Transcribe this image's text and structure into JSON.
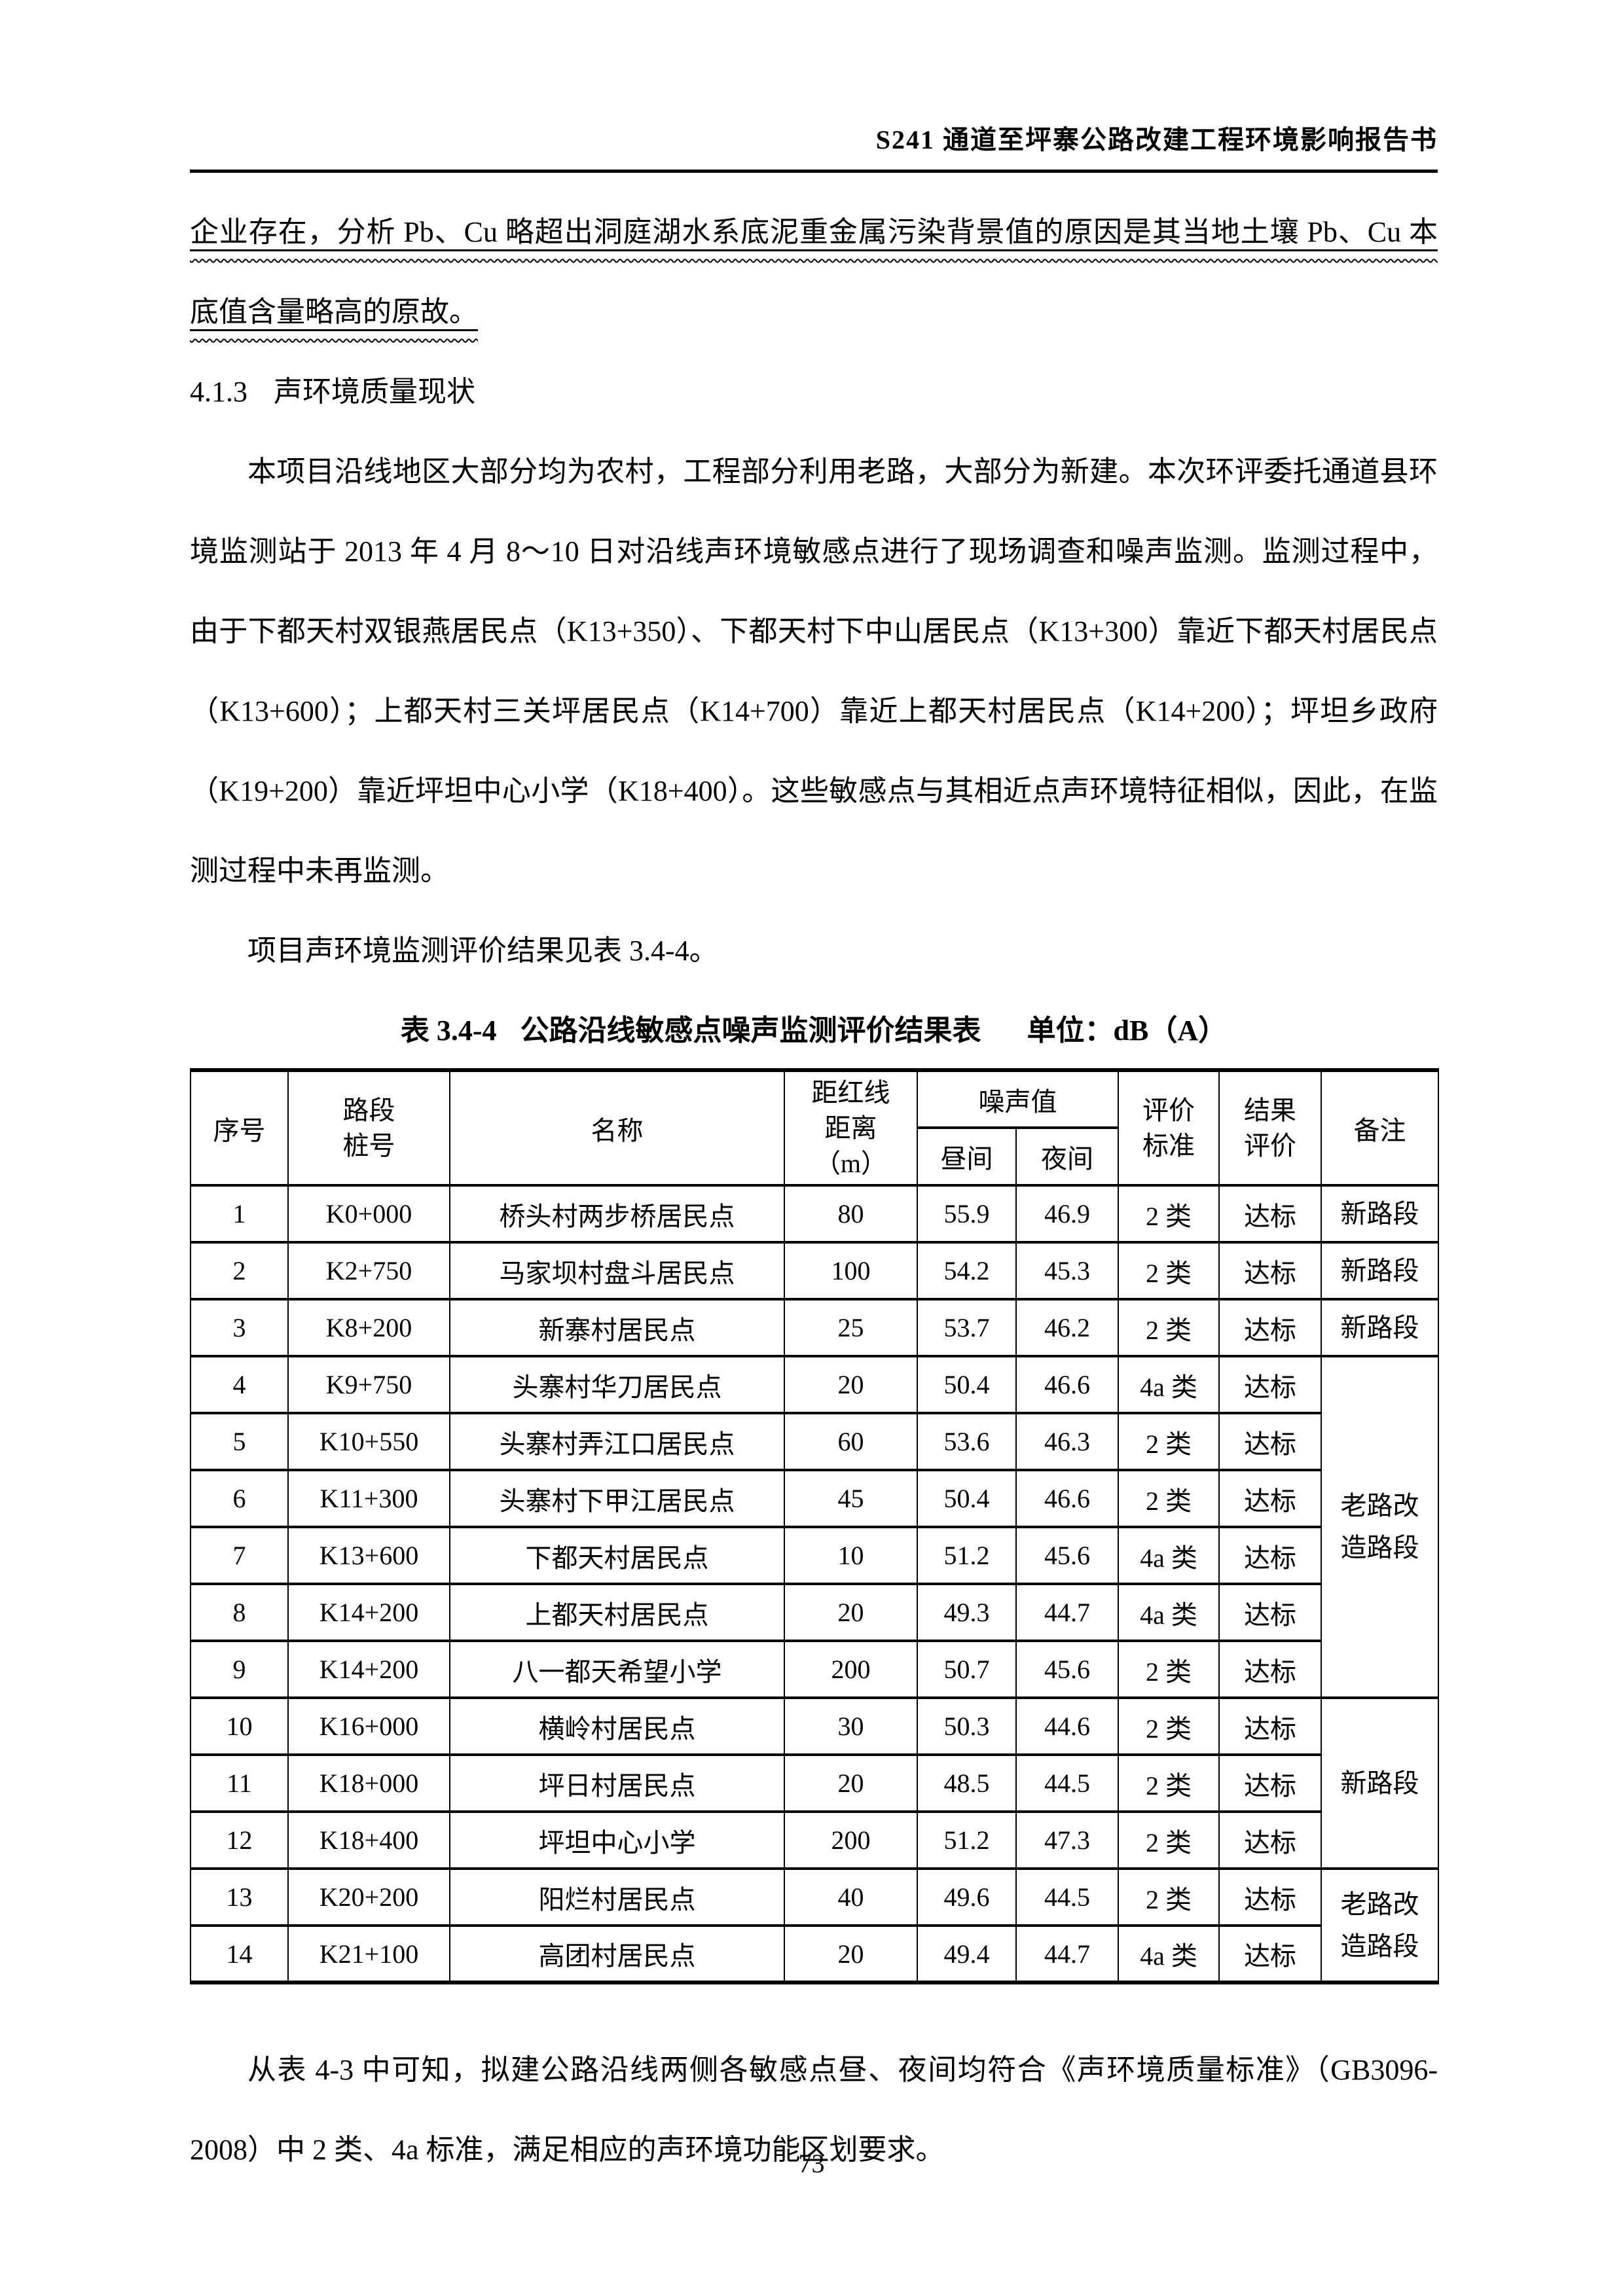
{
  "page": {
    "header_title": "S241 通道至坪寨公路改建工程环境影响报告书",
    "page_number": "73"
  },
  "content": {
    "para_overflow": "企业存在，分析 Pb、Cu 略超出洞庭湖水系底泥重金属污染背景值的原因是其当地土壤 Pb、Cu 本底值含量略高的原故。",
    "heading_num": "4.1.3",
    "heading_text": "声环境质量现状",
    "para_intro": "本项目沿线地区大部分均为农村，工程部分利用老路，大部分为新建。本次环评委托通道县环境监测站于 2013 年 4 月 8～10 日对沿线声环境敏感点进行了现场调查和噪声监测。监测过程中，由于下都天村双银燕居民点（K13+350）、下都天村下中山居民点（K13+300）靠近下都天村居民点（K13+600）；上都天村三关坪居民点（K14+700）靠近上都天村居民点（K14+200）；坪坦乡政府（K19+200）靠近坪坦中心小学（K18+400）。这些敏感点与其相近点声环境特征相似，因此，在监测过程中未再监测。",
    "para_table_ref": "项目声环境监测评价结果见表 3.4-4。",
    "para_conclusion": "从表 4-3 中可知，拟建公路沿线两侧各敏感点昼、夜间均符合《声环境质量标准》（GB3096-2008）中 2 类、4a 标准，满足相应的声环境功能区划要求。"
  },
  "table": {
    "caption_label": "表 3.4-4",
    "caption_title": "公路沿线敏感点噪声监测评价结果表",
    "caption_unit": "单位：dB（A）",
    "headers": {
      "seq": "序号",
      "stake": "路段\n桩号",
      "name": "名称",
      "dist": "距红线\n距离\n（m）",
      "noise": "噪声值",
      "day": "昼间",
      "night": "夜间",
      "std": "评价\n标准",
      "result": "结果\n评价",
      "note": "备注"
    },
    "rows": [
      {
        "no": "1",
        "stake": "K0+000",
        "name": "桥头村两步桥居民点",
        "dist": "80",
        "day": "55.9",
        "night": "46.9",
        "std": "2 类",
        "result": "达标",
        "note": {
          "text": "新路段",
          "rowspan": 1
        }
      },
      {
        "no": "2",
        "stake": "K2+750",
        "name": "马家坝村盘斗居民点",
        "dist": "100",
        "day": "54.2",
        "night": "45.3",
        "std": "2 类",
        "result": "达标",
        "note": {
          "text": "新路段",
          "rowspan": 1
        }
      },
      {
        "no": "3",
        "stake": "K8+200",
        "name": "新寨村居民点",
        "dist": "25",
        "day": "53.7",
        "night": "46.2",
        "std": "2 类",
        "result": "达标",
        "note": {
          "text": "新路段",
          "rowspan": 1
        }
      },
      {
        "no": "4",
        "stake": "K9+750",
        "name": "头寨村华刀居民点",
        "dist": "20",
        "day": "50.4",
        "night": "46.6",
        "std": "4a 类",
        "result": "达标",
        "note": {
          "text": "老路改造路段",
          "rowspan": 6
        }
      },
      {
        "no": "5",
        "stake": "K10+550",
        "name": "头寨村弄江口居民点",
        "dist": "60",
        "day": "53.6",
        "night": "46.3",
        "std": "2 类",
        "result": "达标",
        "note": null
      },
      {
        "no": "6",
        "stake": "K11+300",
        "name": "头寨村下甲江居民点",
        "dist": "45",
        "day": "50.4",
        "night": "46.6",
        "std": "2 类",
        "result": "达标",
        "note": null
      },
      {
        "no": "7",
        "stake": "K13+600",
        "name": "下都天村居民点",
        "dist": "10",
        "day": "51.2",
        "night": "45.6",
        "std": "4a 类",
        "result": "达标",
        "note": null
      },
      {
        "no": "8",
        "stake": "K14+200",
        "name": "上都天村居民点",
        "dist": "20",
        "day": "49.3",
        "night": "44.7",
        "std": "4a 类",
        "result": "达标",
        "note": null
      },
      {
        "no": "9",
        "stake": "K14+200",
        "name": "八一都天希望小学",
        "dist": "200",
        "day": "50.7",
        "night": "45.6",
        "std": "2 类",
        "result": "达标",
        "note": null
      },
      {
        "no": "10",
        "stake": "K16+000",
        "name": "横岭村居民点",
        "dist": "30",
        "day": "50.3",
        "night": "44.6",
        "std": "2 类",
        "result": "达标",
        "note": {
          "text": "新路段",
          "rowspan": 3
        }
      },
      {
        "no": "11",
        "stake": "K18+000",
        "name": "坪日村居民点",
        "dist": "20",
        "day": "48.5",
        "night": "44.5",
        "std": "2 类",
        "result": "达标",
        "note": null
      },
      {
        "no": "12",
        "stake": "K18+400",
        "name": "坪坦中心小学",
        "dist": "200",
        "day": "51.2",
        "night": "47.3",
        "std": "2 类",
        "result": "达标",
        "note": null
      },
      {
        "no": "13",
        "stake": "K20+200",
        "name": "阳烂村居民点",
        "dist": "40",
        "day": "49.6",
        "night": "44.5",
        "std": "2 类",
        "result": "达标",
        "note": {
          "text": "老路改造路段",
          "rowspan": 2
        }
      },
      {
        "no": "14",
        "stake": "K21+100",
        "name": "高团村居民点",
        "dist": "20",
        "day": "49.4",
        "night": "44.7",
        "std": "4a 类",
        "result": "达标",
        "note": null
      }
    ]
  }
}
